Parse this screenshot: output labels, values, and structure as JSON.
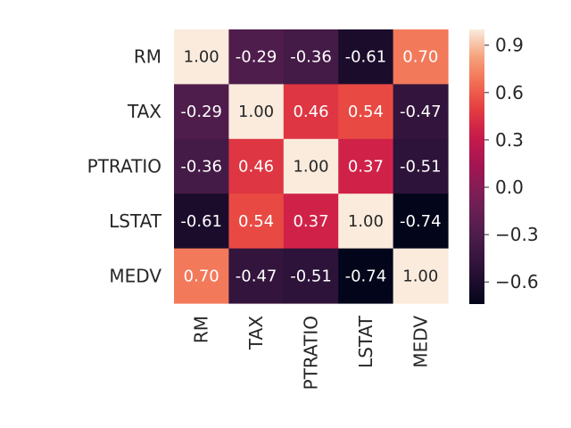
{
  "chart_data": {
    "type": "heatmap",
    "title": "",
    "row_labels": [
      "RM",
      "TAX",
      "PTRATIO",
      "LSTAT",
      "MEDV"
    ],
    "col_labels": [
      "RM",
      "TAX",
      "PTRATIO",
      "LSTAT",
      "MEDV"
    ],
    "values": [
      [
        1.0,
        -0.29,
        -0.36,
        -0.61,
        0.7
      ],
      [
        -0.29,
        1.0,
        0.46,
        0.54,
        -0.47
      ],
      [
        -0.36,
        0.46,
        1.0,
        0.37,
        -0.51
      ],
      [
        -0.61,
        0.54,
        0.37,
        1.0,
        -0.74
      ],
      [
        0.7,
        -0.47,
        -0.51,
        -0.74,
        1.0
      ]
    ],
    "annotations": [
      [
        "1.00",
        "-0.29",
        "-0.36",
        "-0.61",
        "0.70"
      ],
      [
        "-0.29",
        "1.00",
        "0.46",
        "0.54",
        "-0.47"
      ],
      [
        "-0.36",
        "0.46",
        "1.00",
        "0.37",
        "-0.51"
      ],
      [
        "-0.61",
        "0.54",
        "0.37",
        "1.00",
        "-0.74"
      ],
      [
        "0.70",
        "-0.47",
        "-0.51",
        "-0.74",
        "1.00"
      ]
    ],
    "colormap": "rocket",
    "colorbar": {
      "min": -0.74,
      "max": 1.0,
      "ticks": [
        0.9,
        0.6,
        0.3,
        0.0,
        -0.3,
        -0.6
      ],
      "tick_labels": [
        "0.9",
        "0.6",
        "0.3",
        "0.0",
        "−0.3",
        "−0.6"
      ]
    },
    "grid": false
  }
}
